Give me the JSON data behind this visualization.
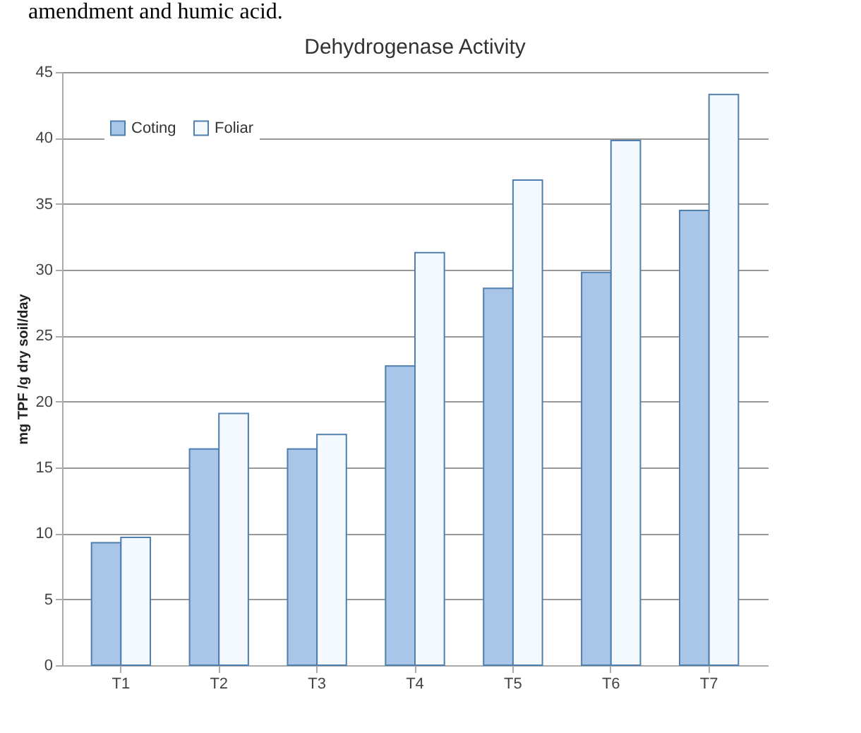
{
  "chart_data": {
    "type": "bar",
    "title": "Dehydrogenase Activity",
    "ylabel": "mg TPF /g dry soil/day",
    "annotations": [
      "amendment and humic acid."
    ],
    "categories": [
      "T1",
      "T2",
      "T3",
      "T4",
      "T5",
      "T6",
      "T7"
    ],
    "series": [
      {
        "name": "Coting",
        "color": "#a9c6e8",
        "values": [
          9.3,
          16.4,
          16.4,
          22.7,
          28.6,
          29.8,
          34.5
        ]
      },
      {
        "name": "Foliar",
        "color": "#f4f9ff",
        "values": [
          9.7,
          19.1,
          17.5,
          31.3,
          36.8,
          39.8,
          43.3
        ]
      }
    ],
    "ylim": [
      0,
      45
    ],
    "yticks": [
      0,
      5,
      10,
      15,
      20,
      25,
      30,
      35,
      40,
      45
    ],
    "grid": "y",
    "legend": "top left"
  }
}
